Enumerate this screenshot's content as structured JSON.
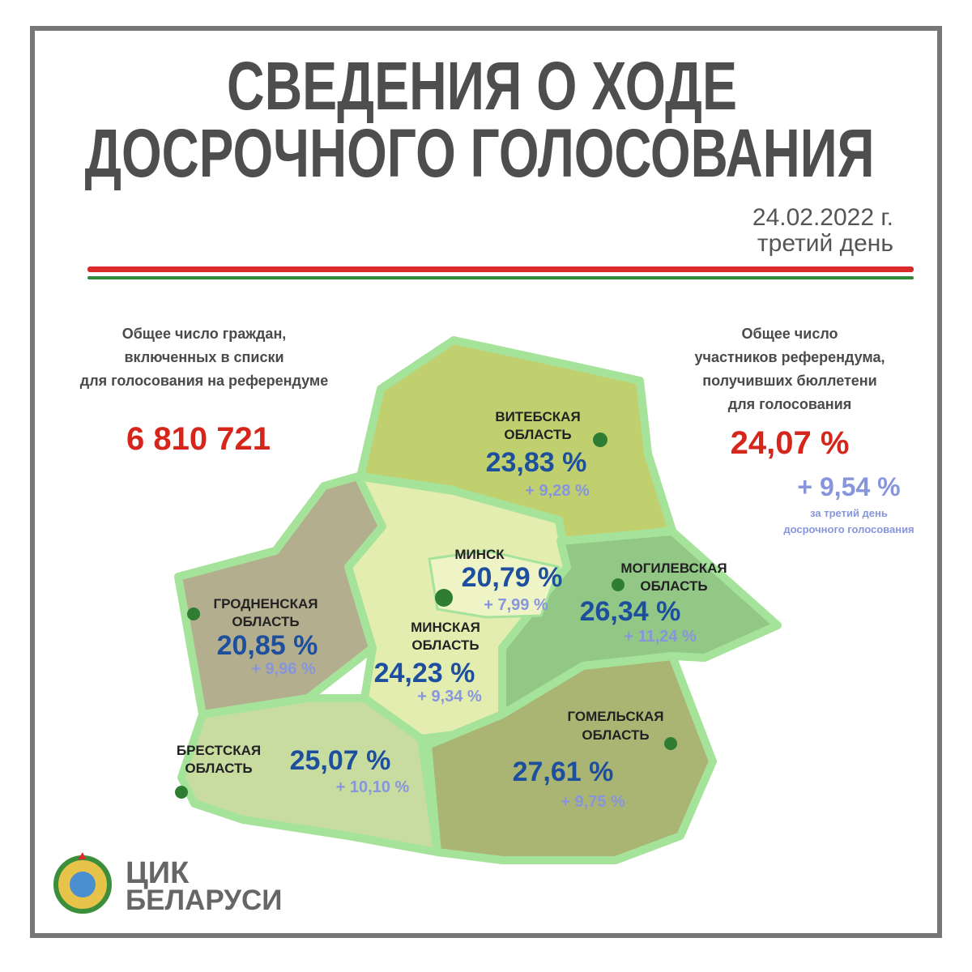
{
  "header": {
    "title": [
      "СВЕДЕНИЯ О ХОДЕ",
      "ДОСРОЧНОГО ГОЛОСОВАНИЯ"
    ],
    "date": "24.02.2022 г.",
    "day": "третий день"
  },
  "left_block": {
    "label": [
      "Общее число граждан,",
      "включенных в списки",
      "для голосования на референдуме"
    ],
    "value": "6 810 721"
  },
  "right_block": {
    "label": [
      "Общее число",
      "участников референдума,",
      "получивших бюллетени",
      "для голосования"
    ],
    "value": "24,07 %",
    "increment": "+ 9,54 %",
    "note": [
      "за третий день",
      "досрочного голосования"
    ]
  },
  "regions": [
    {
      "name": [
        "ВИТЕБСКАЯ",
        "ОБЛАСТЬ"
      ],
      "percent": "23,83 %",
      "increment": "+ 9,28 %"
    },
    {
      "name": [
        "МИНСК"
      ],
      "percent": "20,79 %",
      "increment": "+ 7,99 %"
    },
    {
      "name": [
        "МОГИЛЕВСКАЯ",
        "ОБЛАСТЬ"
      ],
      "percent": "26,34 %",
      "increment": "+ 11,24 %"
    },
    {
      "name": [
        "ГРОДНЕНСКАЯ",
        "ОБЛАСТЬ"
      ],
      "percent": "20,85 %",
      "increment": "+ 9,96 %"
    },
    {
      "name": [
        "МИНСКАЯ",
        "ОБЛАСТЬ"
      ],
      "percent": "24,23 %",
      "increment": "+ 9,34 %"
    },
    {
      "name": [
        "ГОМЕЛЬСКАЯ",
        "ОБЛАСТЬ"
      ],
      "percent": "27,61 %",
      "increment": "+ 9,75 %"
    },
    {
      "name": [
        "БРЕСТСКАЯ",
        "ОБЛАСТЬ"
      ],
      "percent": "25,07 %",
      "increment": "+ 10,10 %"
    }
  ],
  "logo": [
    "ЦИК",
    "БЕЛАРУСИ"
  ]
}
